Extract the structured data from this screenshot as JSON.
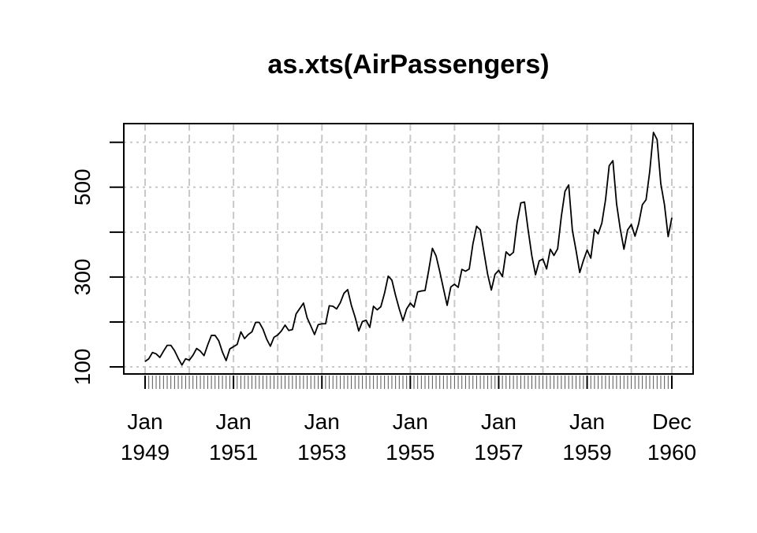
{
  "chart_data": {
    "type": "line",
    "title": "as.xts(AirPassengers)",
    "xlabel": "",
    "ylabel": "",
    "x_start": "Jan 1949",
    "x_end": "Dec 1960",
    "ylim": [
      100,
      622
    ],
    "yticks": [
      100,
      200,
      300,
      400,
      500,
      600
    ],
    "ytick_labels": [
      "100",
      "",
      "300",
      "",
      "500",
      ""
    ],
    "xtick_labels": [
      {
        "month": "Jan",
        "year": "1949"
      },
      {
        "month": "Jan",
        "year": "1951"
      },
      {
        "month": "Jan",
        "year": "1953"
      },
      {
        "month": "Jan",
        "year": "1955"
      },
      {
        "month": "Jan",
        "year": "1957"
      },
      {
        "month": "Jan",
        "year": "1959"
      },
      {
        "month": "Dec",
        "year": "1960"
      }
    ],
    "grid": true,
    "colors": {
      "line": "#000000",
      "grid": "#c8c8c8",
      "axis": "#000000"
    },
    "series": [
      {
        "values": [
          112,
          118,
          132,
          129,
          121,
          135,
          148,
          148,
          136,
          119,
          104,
          118,
          115,
          126,
          141,
          135,
          125,
          149,
          170,
          170,
          158,
          133,
          114,
          140,
          145,
          150,
          178,
          163,
          172,
          178,
          199,
          199,
          184,
          162,
          146,
          166,
          171,
          180,
          193,
          181,
          183,
          218,
          230,
          242,
          209,
          191,
          172,
          194,
          196,
          196,
          236,
          235,
          229,
          243,
          264,
          272,
          237,
          211,
          180,
          201,
          204,
          188,
          235,
          227,
          234,
          264,
          302,
          293,
          259,
          229,
          203,
          229,
          242,
          233,
          267,
          269,
          270,
          315,
          364,
          347,
          312,
          274,
          237,
          278,
          284,
          277,
          317,
          313,
          318,
          374,
          413,
          405,
          355,
          306,
          271,
          306,
          315,
          301,
          356,
          348,
          355,
          422,
          465,
          467,
          404,
          347,
          305,
          336,
          340,
          318,
          362,
          348,
          363,
          435,
          491,
          505,
          404,
          359,
          310,
          337,
          360,
          342,
          406,
          396,
          420,
          472,
          548,
          559,
          463,
          407,
          362,
          405,
          417,
          391,
          419,
          461,
          472,
          535,
          622,
          606,
          508,
          461,
          390,
          432
        ]
      }
    ]
  }
}
